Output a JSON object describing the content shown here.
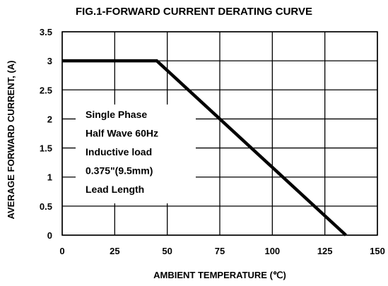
{
  "chart_data": {
    "type": "line",
    "title": "FIG.1-FORWARD CURRENT DERATING CURVE",
    "xlabel": "AMBIENT TEMPERATURE (℃)",
    "ylabel": "AVERAGE FORWARD CURRENT, (A)",
    "xlim": [
      0,
      150
    ],
    "ylim": [
      0,
      3.5
    ],
    "x_ticks": [
      "0",
      "25",
      "50",
      "75",
      "100",
      "125",
      "150"
    ],
    "y_ticks": [
      "0",
      "0.5",
      "1",
      "1.5",
      "2",
      "2.5",
      "3",
      "3.5"
    ],
    "grid": true,
    "series": [
      {
        "x": [
          0,
          45,
          135
        ],
        "y": [
          3,
          3,
          0
        ]
      }
    ],
    "annotation": [
      "Single Phase",
      "Half Wave 60Hz",
      "Inductive load",
      "0.375\"(9.5mm)",
      "Lead Length"
    ]
  }
}
